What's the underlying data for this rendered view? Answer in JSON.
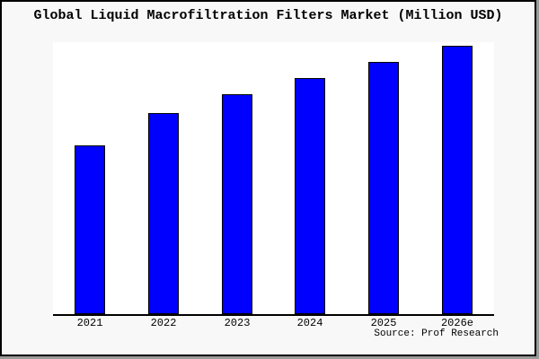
{
  "chart_data": {
    "type": "bar",
    "title": "Global Liquid Macrofiltration Filters Market (Million USD)",
    "categories": [
      "2021",
      "2022",
      "2023",
      "2024",
      "2025",
      "2026e"
    ],
    "values": [
      63,
      75,
      82,
      88,
      94,
      100
    ],
    "values_note": "Chart shows no numeric y-axis; values are bar heights as percent of the tallest (2026e) bar",
    "unit": "Million USD",
    "xlabel": "",
    "ylabel": "",
    "grid": false,
    "legend": false,
    "source_note": "Source: Prof Research"
  },
  "colors": {
    "bar_fill": "#0000ff",
    "bar_border": "#000000",
    "plot_background": "#ffffff",
    "figure_background": "#f8f8f8",
    "axis_line": "#000000",
    "frame_border": "#000000",
    "frame_shadow": "#9a9a9a",
    "text": "#000000"
  }
}
